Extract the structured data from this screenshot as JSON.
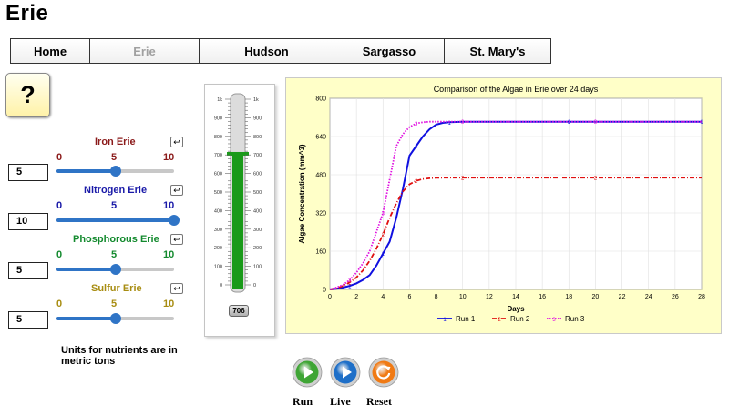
{
  "page": {
    "title": "Erie"
  },
  "nav": [
    {
      "label": "Home",
      "active": false
    },
    {
      "label": "Erie",
      "active": true
    },
    {
      "label": "Hudson",
      "active": false
    },
    {
      "label": "Sargasso",
      "active": false
    },
    {
      "label": "St. Mary's",
      "active": false
    }
  ],
  "help": {
    "label": "?"
  },
  "sliders": [
    {
      "title": "Iron Erie",
      "color": "#8b1a1a",
      "min": 0,
      "max": 10,
      "value": 5,
      "ticks": [
        "0",
        "5",
        "10"
      ],
      "reset_icon": "reset-icon"
    },
    {
      "title": "Nitrogen Erie",
      "color": "#1a1aa8",
      "min": 0,
      "max": 10,
      "value": 10,
      "ticks": [
        "0",
        "5",
        "10"
      ],
      "reset_icon": "reset-icon"
    },
    {
      "title": "Phosphorous Erie",
      "color": "#138a2e",
      "min": 0,
      "max": 10,
      "value": 5,
      "ticks": [
        "0",
        "5",
        "10"
      ],
      "reset_icon": "reset-icon"
    },
    {
      "title": "Sulfur Erie",
      "color": "#a88d12",
      "min": 0,
      "max": 10,
      "value": 5,
      "ticks": [
        "0",
        "5",
        "10"
      ],
      "reset_icon": "reset-icon"
    }
  ],
  "inputs": [
    "5",
    "10",
    "5",
    "5"
  ],
  "units_note": "Units for nutrients are in metric tons",
  "gauge": {
    "tick_labels": [
      "1k",
      "900",
      "800",
      "700",
      "600",
      "500",
      "400",
      "300",
      "200",
      "100",
      "0"
    ],
    "value": 706,
    "readout": "706",
    "max": 1000,
    "fill_color": "#1a9a1a"
  },
  "chart_data": {
    "type": "line",
    "title": "Comparison of the Algae in Erie over 24 days",
    "xlabel": "Days",
    "ylabel": "Algae Concentration (mm^3)",
    "xlim": [
      0,
      28
    ],
    "ylim": [
      0,
      800
    ],
    "xticks": [
      0,
      2,
      4,
      6,
      8,
      10,
      12,
      14,
      16,
      18,
      20,
      22,
      24,
      26,
      28
    ],
    "yticks": [
      0,
      160,
      320,
      480,
      640,
      800
    ],
    "grid": true,
    "legend_position": "bottom",
    "series": [
      {
        "name": "Run 1",
        "marker": "1",
        "color": "#1010e0",
        "style": "solid",
        "x": [
          0,
          0.5,
          1,
          1.5,
          2,
          2.5,
          3,
          3.5,
          4,
          4.5,
          5,
          5.5,
          6,
          6.5,
          7,
          7.5,
          8,
          8.5,
          9,
          10,
          12,
          14,
          16,
          18,
          20,
          22,
          24,
          26,
          28
        ],
        "y": [
          0,
          3,
          8,
          15,
          25,
          40,
          60,
          100,
          150,
          200,
          300,
          420,
          560,
          600,
          640,
          670,
          690,
          697,
          700,
          702,
          702,
          702,
          702,
          702,
          702,
          702,
          702,
          702,
          702
        ]
      },
      {
        "name": "Run 2",
        "marker": "2",
        "color": "#e01010",
        "style": "dashdot",
        "x": [
          0,
          0.5,
          1,
          1.5,
          2,
          2.5,
          3,
          3.5,
          4,
          4.5,
          5,
          5.5,
          6,
          6.5,
          7,
          7.5,
          8,
          9,
          10,
          12,
          14,
          16,
          18,
          20,
          22,
          24,
          26,
          28
        ],
        "y": [
          0,
          5,
          15,
          30,
          50,
          80,
          120,
          170,
          230,
          300,
          360,
          410,
          440,
          455,
          462,
          465,
          467,
          468,
          468,
          468,
          468,
          468,
          468,
          468,
          468,
          468,
          468,
          468
        ]
      },
      {
        "name": "Run 3",
        "marker": "3",
        "color": "#e010e0",
        "style": "dotted",
        "x": [
          0,
          0.5,
          1,
          1.5,
          2,
          2.5,
          3,
          3.5,
          4,
          4.5,
          5,
          5.5,
          6,
          6.5,
          7,
          7.5,
          8,
          9,
          10,
          12,
          14,
          16,
          18,
          20,
          22,
          24,
          26,
          28
        ],
        "y": [
          0,
          8,
          20,
          40,
          70,
          110,
          160,
          240,
          320,
          460,
          600,
          650,
          680,
          695,
          700,
          702,
          702,
          702,
          702,
          702,
          702,
          702,
          702,
          702,
          702,
          702,
          702,
          702
        ]
      }
    ]
  },
  "controls": [
    {
      "label": "Run",
      "icon": "play-icon",
      "color": "#3fa535"
    },
    {
      "label": "Live",
      "icon": "play-icon",
      "color": "#1e6fc8"
    },
    {
      "label": "Reset",
      "icon": "reset-icon",
      "color": "#f07a14"
    }
  ]
}
